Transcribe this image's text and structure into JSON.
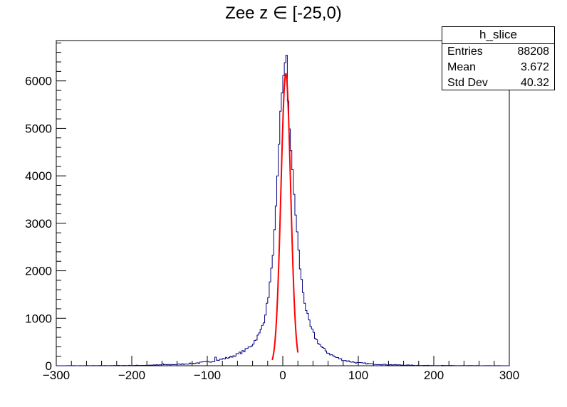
{
  "chart_data": {
    "type": "histogram",
    "title": "Zee z ∈ [-25,0)",
    "xlim": [
      -300,
      300
    ],
    "ylim": [
      0,
      6850
    ],
    "x_ticks": [
      -300,
      -200,
      -100,
      0,
      100,
      200,
      300
    ],
    "x_tick_labels": [
      "−300",
      "−200",
      "−100",
      "0",
      "100",
      "200",
      "300"
    ],
    "y_ticks": [
      0,
      1000,
      2000,
      3000,
      4000,
      5000,
      6000
    ],
    "y_tick_labels": [
      "0",
      "1000",
      "2000",
      "3000",
      "4000",
      "5000",
      "6000"
    ],
    "grid": false,
    "histogram": {
      "color": "#00007f",
      "bin_width": 2,
      "profile": [
        [
          -300,
          0
        ],
        [
          -240,
          2
        ],
        [
          -200,
          6
        ],
        [
          -180,
          10
        ],
        [
          -160,
          18
        ],
        [
          -140,
          28
        ],
        [
          -120,
          48
        ],
        [
          -100,
          80
        ],
        [
          -90,
          100
        ],
        [
          -80,
          140
        ],
        [
          -70,
          180
        ],
        [
          -60,
          240
        ],
        [
          -50,
          320
        ],
        [
          -40,
          450
        ],
        [
          -30,
          700
        ],
        [
          -25,
          950
        ],
        [
          -20,
          1350
        ],
        [
          -15,
          2000
        ],
        [
          -10,
          3000
        ],
        [
          -6,
          4200
        ],
        [
          -3,
          5300
        ],
        [
          0,
          6000
        ],
        [
          2,
          6350
        ],
        [
          4,
          6300
        ],
        [
          6,
          5900
        ],
        [
          8,
          5300
        ],
        [
          10,
          4800
        ],
        [
          14,
          3800
        ],
        [
          18,
          3000
        ],
        [
          22,
          2200
        ],
        [
          26,
          1650
        ],
        [
          30,
          1250
        ],
        [
          36,
          850
        ],
        [
          44,
          560
        ],
        [
          52,
          380
        ],
        [
          60,
          270
        ],
        [
          70,
          180
        ],
        [
          80,
          120
        ],
        [
          90,
          85
        ],
        [
          100,
          60
        ],
        [
          120,
          35
        ],
        [
          140,
          22
        ],
        [
          160,
          14
        ],
        [
          180,
          8
        ],
        [
          200,
          5
        ],
        [
          240,
          2
        ],
        [
          300,
          0
        ]
      ],
      "annotated_bins": [
        {
          "x": 4,
          "y": 6540
        },
        {
          "x": -90,
          "y": 180
        },
        {
          "x": -160,
          "y": 40
        }
      ]
    },
    "fit": {
      "color": "#ff0000",
      "mean": 4,
      "sigma": 13.5,
      "amplitude": 6150,
      "range": [
        -14,
        20
      ]
    },
    "stats": {
      "name": "h_slice",
      "entries_label": "Entries",
      "entries": "88208",
      "mean_label": "Mean",
      "mean": "3.672",
      "stddev_label": "Std Dev",
      "stddev": "40.32"
    }
  }
}
